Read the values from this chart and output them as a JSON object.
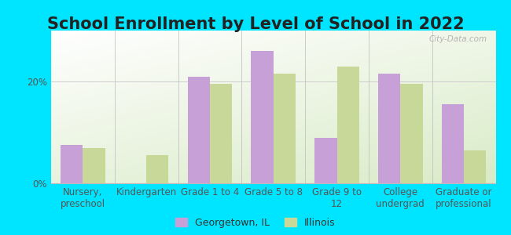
{
  "title": "School Enrollment by Level of School in 2022",
  "categories": [
    "Nursery,\npreschool",
    "Kindergarten",
    "Grade 1 to 4",
    "Grade 5 to 8",
    "Grade 9 to\n12",
    "College\nundergrad",
    "Graduate or\nprofessional"
  ],
  "georgetown_values": [
    7.5,
    0,
    21.0,
    26.0,
    9.0,
    21.5,
    15.5
  ],
  "illinois_values": [
    7.0,
    5.5,
    19.5,
    21.5,
    23.0,
    19.5,
    6.5
  ],
  "georgetown_color": "#c8a0d8",
  "illinois_color": "#c8d898",
  "bar_width": 0.35,
  "ylim": [
    0,
    30
  ],
  "yticks": [
    0,
    20
  ],
  "ytick_labels": [
    "0%",
    "20%"
  ],
  "legend_labels": [
    "Georgetown, IL",
    "Illinois"
  ],
  "background_color": "#00e5ff",
  "plot_bg_topleft": "#ffffff",
  "plot_bg_bottomright": "#d8eacc",
  "watermark": "City-Data.com",
  "title_fontsize": 15,
  "axis_label_fontsize": 8.5,
  "title_color": "#222222"
}
